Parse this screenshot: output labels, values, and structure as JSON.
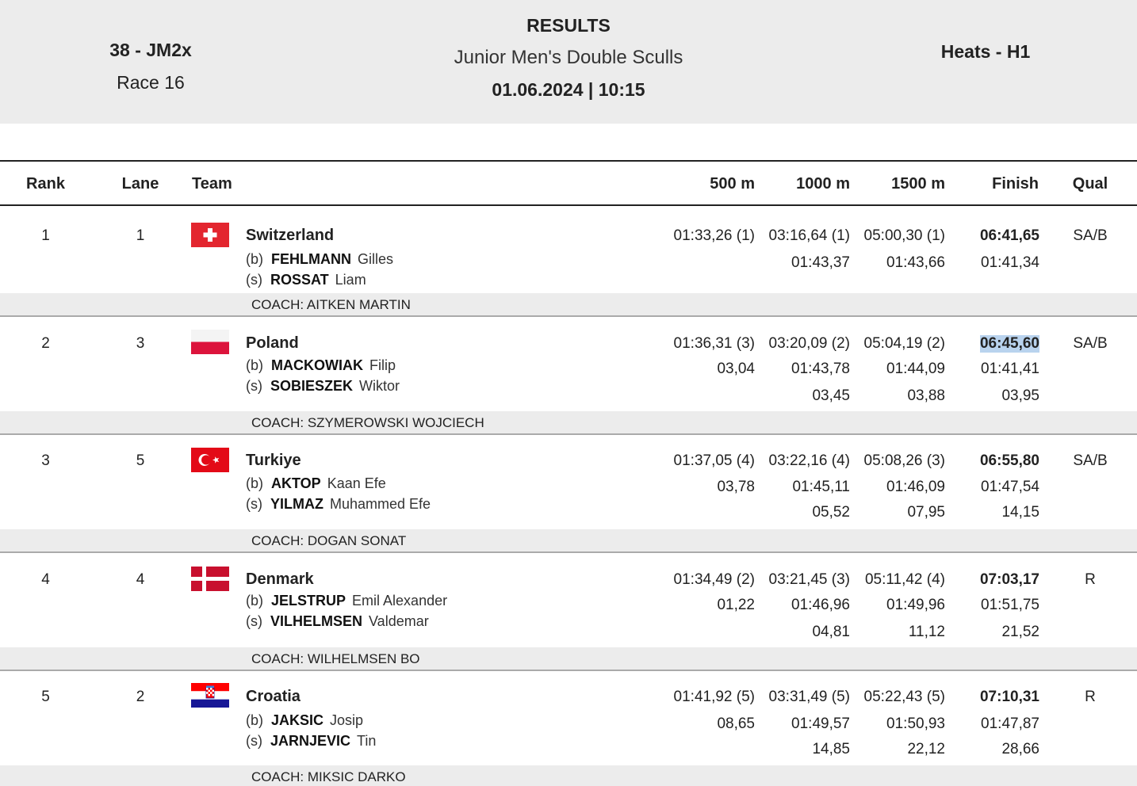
{
  "header": {
    "event_code": "38 - JM2x",
    "race": "Race 16",
    "title": "RESULTS",
    "subtitle": "Junior Men's Double Sculls",
    "datetime": "01.06.2024 | 10:15",
    "phase": "Heats - H1"
  },
  "columns": {
    "rank": "Rank",
    "lane": "Lane",
    "team": "Team",
    "m500": "500 m",
    "m1000": "1000 m",
    "m1500": "1500 m",
    "finish": "Finish",
    "qual": "Qual"
  },
  "rows": [
    {
      "rank": "1",
      "lane": "1",
      "team": "Switzerland",
      "flag": "switzerland-flag-icon",
      "bow_role": "(b)",
      "bow_last": "FEHLMANN",
      "bow_first": "Gilles",
      "stroke_role": "(s)",
      "stroke_last": "ROSSAT",
      "stroke_first": "Liam",
      "t500": "01:33,26 (1)",
      "t1000": "03:16,64 (1)",
      "t1500": "05:00,30 (1)",
      "finish": "06:41,65",
      "split1000": "01:43,37",
      "split1500": "01:43,66",
      "split_finish": "01:41,34",
      "qual": "SA/B",
      "coach": "COACH: AITKEN MARTIN"
    },
    {
      "rank": "2",
      "lane": "3",
      "team": "Poland",
      "flag": "poland-flag-icon",
      "bow_role": "(b)",
      "bow_last": "MACKOWIAK",
      "bow_first": "Filip",
      "stroke_role": "(s)",
      "stroke_last": "SOBIESZEK",
      "stroke_first": "Wiktor",
      "t500": "01:36,31 (3)",
      "t1000": "03:20,09 (2)",
      "t1500": "05:04,19 (2)",
      "finish": "06:45,60",
      "gap500": "03,04",
      "split1000": "01:43,78",
      "split1500": "01:44,09",
      "split_finish": "01:41,41",
      "gap1000": "03,45",
      "gap1500": "03,88",
      "gap_finish": "03,95",
      "qual": "SA/B",
      "coach": "COACH: SZYMEROWSKI WOJCIECH"
    },
    {
      "rank": "3",
      "lane": "5",
      "team": "Turkiye",
      "flag": "turkey-flag-icon",
      "bow_role": "(b)",
      "bow_last": "AKTOP",
      "bow_first": "Kaan Efe",
      "stroke_role": "(s)",
      "stroke_last": "YILMAZ",
      "stroke_first": "Muhammed Efe",
      "t500": "01:37,05 (4)",
      "t1000": "03:22,16 (4)",
      "t1500": "05:08,26 (3)",
      "finish": "06:55,80",
      "gap500": "03,78",
      "split1000": "01:45,11",
      "split1500": "01:46,09",
      "split_finish": "01:47,54",
      "gap1000": "05,52",
      "gap1500": "07,95",
      "gap_finish": "14,15",
      "qual": "SA/B",
      "coach": "COACH: DOGAN SONAT"
    },
    {
      "rank": "4",
      "lane": "4",
      "team": "Denmark",
      "flag": "denmark-flag-icon",
      "bow_role": "(b)",
      "bow_last": "JELSTRUP",
      "bow_first": "Emil Alexander",
      "stroke_role": "(s)",
      "stroke_last": "VILHELMSEN",
      "stroke_first": "Valdemar",
      "t500": "01:34,49 (2)",
      "t1000": "03:21,45 (3)",
      "t1500": "05:11,42 (4)",
      "finish": "07:03,17",
      "gap500": "01,22",
      "split1000": "01:46,96",
      "split1500": "01:49,96",
      "split_finish": "01:51,75",
      "gap1000": "04,81",
      "gap1500": "11,12",
      "gap_finish": "21,52",
      "qual": "R",
      "coach": "COACH: WILHELMSEN BO"
    },
    {
      "rank": "5",
      "lane": "2",
      "team": "Croatia",
      "flag": "croatia-flag-icon",
      "bow_role": "(b)",
      "bow_last": "JAKSIC",
      "bow_first": "Josip",
      "stroke_role": "(s)",
      "stroke_last": "JARNJEVIC",
      "stroke_first": "Tin",
      "t500": "01:41,92 (5)",
      "t1000": "03:31,49 (5)",
      "t1500": "05:22,43 (5)",
      "finish": "07:10,31",
      "gap500": "08,65",
      "split1000": "01:49,57",
      "split1500": "01:50,93",
      "split_finish": "01:47,87",
      "gap1000": "14,85",
      "gap1500": "22,12",
      "gap_finish": "28,66",
      "qual": "R",
      "coach": "COACH: MIKSIC DARKO"
    }
  ]
}
